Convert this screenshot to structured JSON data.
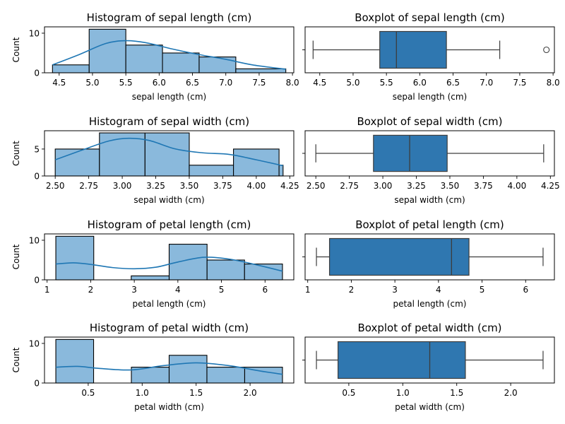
{
  "colors": {
    "bar_fill": "#8ab9dc",
    "kde_line": "#1f77b4",
    "box_fill": "#2f77b0",
    "box_line": "#3d3d3d"
  },
  "chart_data": [
    {
      "type": "bar",
      "kind": "histogram",
      "title": "Histogram of sepal length (cm)",
      "xlabel": "sepal length (cm)",
      "ylabel": "Count",
      "xlim": [
        4.28,
        8.02
      ],
      "ylim": [
        0,
        11.6
      ],
      "xticks": [
        "4.5",
        "5.0",
        "5.5",
        "6.0",
        "6.5",
        "7.0",
        "7.5",
        "8.0"
      ],
      "yticks": [
        "0",
        "10"
      ],
      "bin_edges": [
        4.4,
        4.95,
        5.5,
        6.05,
        6.6,
        7.15,
        7.7
      ],
      "bin_right": 7.9,
      "counts": [
        2,
        11,
        7,
        5,
        4,
        1
      ],
      "kde": {
        "x": [
          4.4,
          4.8,
          5.2,
          5.5,
          5.8,
          6.2,
          6.6,
          7.0,
          7.4,
          7.9
        ],
        "y": [
          2.0,
          4.6,
          7.4,
          8.1,
          7.6,
          6.0,
          4.6,
          3.4,
          2.0,
          0.9
        ]
      }
    },
    {
      "type": "box",
      "title": "Boxplot of sepal length (cm)",
      "xlabel": "sepal length (cm)",
      "xlim": [
        4.28,
        8.02
      ],
      "xticks": [
        "4.5",
        "5.0",
        "5.5",
        "6.0",
        "6.5",
        "7.0",
        "7.5",
        "8.0"
      ],
      "whisker_low": 4.4,
      "q1": 5.4,
      "median": 5.65,
      "q3": 6.4,
      "whisker_high": 7.2,
      "outliers": [
        7.9
      ]
    },
    {
      "type": "bar",
      "kind": "histogram",
      "title": "Histogram of sepal width (cm)",
      "xlabel": "sepal width (cm)",
      "ylabel": "Count",
      "xlim": [
        2.42,
        4.28
      ],
      "ylim": [
        0,
        8.4
      ],
      "xticks": [
        "2.50",
        "2.75",
        "3.00",
        "3.25",
        "3.50",
        "3.75",
        "4.00",
        "4.25"
      ],
      "yticks": [
        "0",
        "5"
      ],
      "bin_edges": [
        2.5,
        2.83,
        3.17,
        3.5,
        3.83,
        4.17,
        4.5
      ],
      "bin_right": 4.2,
      "counts": [
        5,
        8,
        8,
        2,
        5,
        2
      ],
      "kde": {
        "x": [
          2.5,
          2.7,
          2.9,
          3.05,
          3.2,
          3.4,
          3.6,
          3.8,
          4.0,
          4.2
        ],
        "y": [
          3.0,
          4.8,
          6.5,
          7.0,
          6.6,
          5.0,
          4.3,
          4.0,
          3.0,
          1.9
        ]
      }
    },
    {
      "type": "box",
      "title": "Boxplot of sepal width (cm)",
      "xlabel": "sepal width (cm)",
      "xlim": [
        2.42,
        4.28
      ],
      "xticks": [
        "2.50",
        "2.75",
        "3.00",
        "3.25",
        "3.50",
        "3.75",
        "4.00",
        "4.25"
      ],
      "whisker_low": 2.5,
      "q1": 2.93,
      "median": 3.2,
      "q3": 3.48,
      "whisker_high": 4.2,
      "outliers": []
    },
    {
      "type": "bar",
      "kind": "histogram",
      "title": "Histogram of petal length (cm)",
      "xlabel": "petal length (cm)",
      "ylabel": "Count",
      "xlim": [
        0.94,
        6.66
      ],
      "ylim": [
        0,
        11.6
      ],
      "xticks": [
        "1",
        "2",
        "3",
        "4",
        "5",
        "6"
      ],
      "yticks": [
        "0",
        "10"
      ],
      "bin_edges": [
        1.2,
        2.07,
        2.93,
        3.8,
        4.67,
        5.53
      ],
      "bin_right": 6.4,
      "counts": [
        11,
        0,
        1,
        9,
        5,
        4
      ],
      "kde": {
        "x": [
          1.2,
          1.6,
          2.0,
          2.5,
          3.0,
          3.5,
          4.0,
          4.6,
          5.2,
          5.8,
          6.4
        ],
        "y": [
          4.0,
          4.3,
          3.9,
          3.1,
          2.8,
          3.2,
          4.5,
          5.7,
          5.2,
          3.8,
          2.2
        ]
      }
    },
    {
      "type": "box",
      "title": "Boxplot of petal length (cm)",
      "xlabel": "petal length (cm)",
      "xlim": [
        0.94,
        6.66
      ],
      "xticks": [
        "1",
        "2",
        "3",
        "4",
        "5",
        "6"
      ],
      "whisker_low": 1.2,
      "q1": 1.5,
      "median": 4.3,
      "q3": 4.7,
      "whisker_high": 6.4,
      "outliers": []
    },
    {
      "type": "bar",
      "kind": "histogram",
      "title": "Histogram of petal width (cm)",
      "xlabel": "petal width (cm)",
      "ylabel": "Count",
      "xlim": [
        0.095,
        2.405
      ],
      "ylim": [
        0,
        11.6
      ],
      "xticks": [
        "0.5",
        "1.0",
        "1.5",
        "2.0"
      ],
      "yticks": [
        "0",
        "10"
      ],
      "bin_edges": [
        0.2,
        0.55,
        0.9,
        1.25,
        1.6,
        1.95
      ],
      "bin_right": 2.3,
      "counts": [
        11,
        0,
        4,
        7,
        4,
        4
      ],
      "kde": {
        "x": [
          0.2,
          0.4,
          0.6,
          0.9,
          1.2,
          1.5,
          1.8,
          2.1,
          2.3
        ],
        "y": [
          4.0,
          4.2,
          3.7,
          3.3,
          4.4,
          5.1,
          4.4,
          3.0,
          2.2
        ]
      }
    },
    {
      "type": "box",
      "title": "Boxplot of petal width (cm)",
      "xlabel": "petal width (cm)",
      "xlim": [
        0.095,
        2.405
      ],
      "xticks": [
        "0.5",
        "1.0",
        "1.5",
        "2.0"
      ],
      "whisker_low": 0.2,
      "q1": 0.4,
      "median": 1.25,
      "q3": 1.58,
      "whisker_high": 2.3,
      "outliers": []
    }
  ]
}
